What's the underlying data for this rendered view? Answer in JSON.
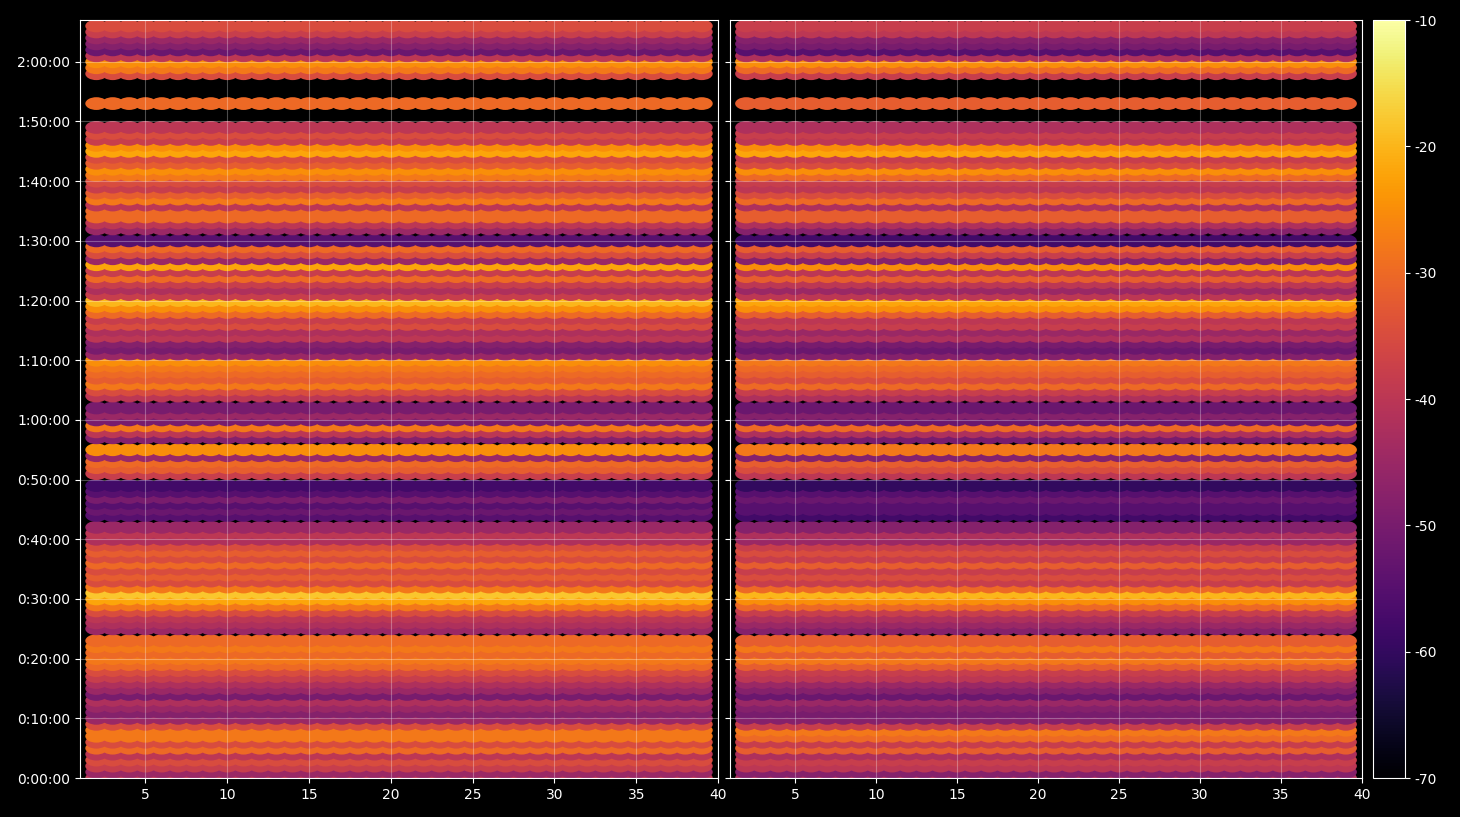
{
  "chart_data": {
    "type": "scatter",
    "color": "inferno",
    "grid": true,
    "x": [
      2,
      3,
      4,
      5,
      6,
      7,
      8,
      9,
      10,
      11,
      12,
      13,
      14,
      15,
      16,
      17,
      18,
      19,
      20,
      21,
      22,
      23,
      24,
      25,
      26,
      27,
      28,
      29,
      30,
      31,
      32,
      33,
      34,
      35,
      36,
      37,
      38,
      39
    ],
    "y": [
      0,
      60,
      120,
      180,
      240,
      300,
      360,
      420,
      480,
      540,
      600,
      660,
      720,
      780,
      840,
      900,
      960,
      1020,
      1080,
      1140,
      1200,
      1260,
      1320,
      1380,
      1440,
      1500,
      1560,
      1620,
      1680,
      1740,
      1800,
      1860,
      1920,
      1980,
      2040,
      2100,
      2160,
      2220,
      2280,
      2340,
      2400,
      2460,
      2520,
      2580,
      2640,
      2700,
      2760,
      2820,
      2880,
      2940,
      3000,
      3060,
      3120,
      3180,
      3240,
      3300,
      3360,
      3420,
      3480,
      3540,
      3600,
      3660,
      3720,
      3780,
      3840,
      3900,
      3960,
      4020,
      4080,
      4140,
      4200,
      4260,
      4320,
      4380,
      4440,
      4500,
      4560,
      4620,
      4680,
      4740,
      4800,
      4860,
      4920,
      4980,
      5040,
      5100,
      5160,
      5220,
      5280,
      5340,
      5400,
      5460,
      5520,
      5580,
      5640,
      5700,
      5760,
      5820,
      5880,
      5940,
      6000,
      6060,
      6120,
      6180,
      6240,
      6300,
      6360,
      6420,
      6480,
      6540,
      6600,
      6660,
      6720,
      6780,
      6840,
      6900,
      6960,
      7020,
      7080,
      7140,
      7200,
      7260,
      7320,
      7380,
      7440,
      7500,
      7560
    ],
    "panels": [
      {
        "values": [
          -40,
          -45,
          -38,
          -35,
          -40,
          -30,
          -35,
          -28,
          -28,
          -35,
          -45,
          -48,
          -45,
          -42,
          -50,
          -45,
          -42,
          -38,
          -35,
          -30,
          -28,
          -30,
          -28,
          -30,
          null,
          -45,
          -42,
          -40,
          -35,
          -28,
          -22,
          -18,
          -28,
          -35,
          -32,
          -35,
          -30,
          -35,
          -32,
          -35,
          -42,
          -40,
          -45,
          null,
          -55,
          -52,
          -55,
          -50,
          -55,
          -58,
          null,
          -38,
          -32,
          -30,
          -45,
          -25,
          null,
          -48,
          -40,
          -28,
          -50,
          -45,
          -50,
          null,
          -40,
          -35,
          -28,
          -32,
          -30,
          -28,
          -25,
          -45,
          -50,
          -48,
          -40,
          -42,
          -35,
          -38,
          -30,
          -25,
          -20,
          -38,
          -42,
          -38,
          -30,
          -38,
          -22,
          -45,
          -35,
          -30,
          -55,
          null,
          -45,
          -40,
          -30,
          -30,
          -40,
          -28,
          -32,
          -38,
          -35,
          -28,
          -25,
          -32,
          -35,
          -22,
          -25,
          -38,
          -35,
          -40,
          null,
          null,
          null,
          -30,
          null,
          null,
          null,
          null,
          -35,
          -28,
          -25,
          -40,
          -52,
          -48,
          -45,
          -38,
          -35
        ]
      },
      {
        "values": [
          -42,
          -48,
          -40,
          -38,
          -42,
          -32,
          -38,
          -30,
          -28,
          -38,
          -48,
          -50,
          -48,
          -45,
          -52,
          -48,
          -45,
          -40,
          -38,
          -32,
          -28,
          -32,
          -28,
          -32,
          null,
          -48,
          -45,
          -42,
          -38,
          -30,
          -25,
          -20,
          -30,
          -38,
          -35,
          -38,
          -32,
          -38,
          -35,
          -38,
          -45,
          -42,
          -48,
          null,
          -58,
          -55,
          -55,
          -52,
          -55,
          -60,
          null,
          -40,
          -35,
          -32,
          -48,
          -28,
          null,
          -50,
          -42,
          -30,
          -52,
          -48,
          -52,
          null,
          -42,
          -38,
          -30,
          -35,
          -32,
          -30,
          -28,
          -48,
          -52,
          -50,
          -42,
          -45,
          -38,
          -40,
          -32,
          -25,
          -22,
          -40,
          -45,
          -40,
          -32,
          -40,
          -25,
          -48,
          -38,
          -32,
          -58,
          null,
          -48,
          -42,
          -32,
          -32,
          -42,
          -30,
          -35,
          -40,
          -38,
          -30,
          -25,
          -35,
          -38,
          -22,
          -25,
          -40,
          -38,
          -42,
          null,
          null,
          null,
          -32,
          null,
          null,
          null,
          null,
          -38,
          -30,
          -25,
          -42,
          -55,
          -50,
          -48,
          -40,
          -38
        ]
      }
    ],
    "xlim": [
      1,
      40
    ],
    "xticks": [
      5,
      10,
      15,
      20,
      25,
      30,
      35,
      40
    ],
    "ylim": [
      0,
      7620
    ],
    "yticks": [
      {
        "value": 0,
        "label": "0:00:00"
      },
      {
        "value": 600,
        "label": "0:10:00"
      },
      {
        "value": 1200,
        "label": "0:20:00"
      },
      {
        "value": 1800,
        "label": "0:30:00"
      },
      {
        "value": 2400,
        "label": "0:40:00"
      },
      {
        "value": 3000,
        "label": "0:50:00"
      },
      {
        "value": 3600,
        "label": "1:00:00"
      },
      {
        "value": 4200,
        "label": "1:10:00"
      },
      {
        "value": 4800,
        "label": "1:20:00"
      },
      {
        "value": 5400,
        "label": "1:30:00"
      },
      {
        "value": 6000,
        "label": "1:40:00"
      },
      {
        "value": 6600,
        "label": "1:50:00"
      },
      {
        "value": 7200,
        "label": "2:00:00"
      }
    ],
    "colorbar": {
      "range": [
        -70,
        -10
      ],
      "ticks": [
        -70,
        -60,
        -50,
        -40,
        -30,
        -20,
        -10
      ]
    }
  }
}
